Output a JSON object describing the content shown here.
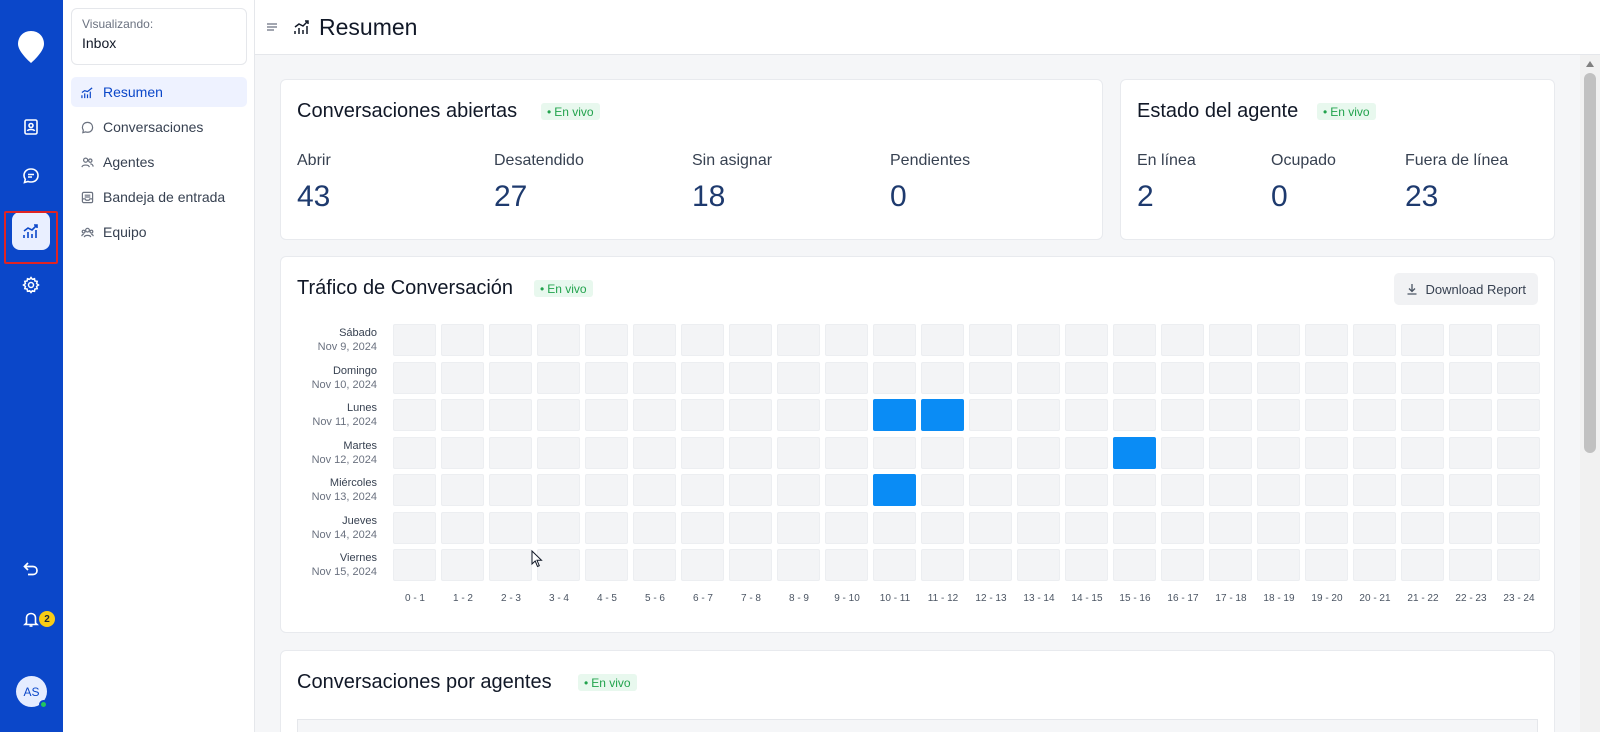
{
  "context": {
    "label": "Visualizando:",
    "value": "Inbox"
  },
  "sidebar": {
    "items": [
      {
        "label": "Resumen",
        "icon": "chart-icon",
        "active": true
      },
      {
        "label": "Conversaciones",
        "icon": "chat-icon"
      },
      {
        "label": "Agentes",
        "icon": "users-icon"
      },
      {
        "label": "Bandeja de entrada",
        "icon": "inbox-icon"
      },
      {
        "label": "Equipo",
        "icon": "team-icon"
      }
    ]
  },
  "rail": {
    "notification_count": "2",
    "avatar_initials": "AS"
  },
  "header": {
    "title": "Resumen"
  },
  "live_label": "En vivo",
  "open_conversations": {
    "title": "Conversaciones abiertas",
    "metrics": [
      {
        "label": "Abrir",
        "value": "43"
      },
      {
        "label": "Desatendido",
        "value": "27"
      },
      {
        "label": "Sin asignar",
        "value": "18"
      },
      {
        "label": "Pendientes",
        "value": "0"
      }
    ]
  },
  "agent_status": {
    "title": "Estado del agente",
    "metrics": [
      {
        "label": "En línea",
        "value": "2"
      },
      {
        "label": "Ocupado",
        "value": "0"
      },
      {
        "label": "Fuera de línea",
        "value": "23"
      }
    ]
  },
  "traffic": {
    "title": "Tráfico de Conversación",
    "download_label": "Download Report"
  },
  "chart_data": {
    "type": "heatmap",
    "title": "Tráfico de Conversación",
    "rows": [
      {
        "day": "Sábado",
        "date": "Nov 9, 2024"
      },
      {
        "day": "Domingo",
        "date": "Nov 10, 2024"
      },
      {
        "day": "Lunes",
        "date": "Nov 11, 2024"
      },
      {
        "day": "Martes",
        "date": "Nov 12, 2024"
      },
      {
        "day": "Miércoles",
        "date": "Nov 13, 2024"
      },
      {
        "day": "Jueves",
        "date": "Nov 14, 2024"
      },
      {
        "day": "Viernes",
        "date": "Nov 15, 2024"
      }
    ],
    "columns": [
      "0 - 1",
      "1 - 2",
      "2 - 3",
      "3 - 4",
      "4 - 5",
      "5 - 6",
      "6 - 7",
      "7 - 8",
      "8 - 9",
      "9 - 10",
      "10 - 11",
      "11 - 12",
      "12 - 13",
      "13 - 14",
      "14 - 15",
      "15 - 16",
      "16 - 17",
      "17 - 18",
      "18 - 19",
      "19 - 20",
      "20 - 21",
      "21 - 22",
      "22 - 23",
      "23 - 24"
    ],
    "active_cells": [
      {
        "row": "Lunes",
        "col": "10 - 11"
      },
      {
        "row": "Lunes",
        "col": "11 - 12"
      },
      {
        "row": "Martes",
        "col": "15 - 16"
      },
      {
        "row": "Miércoles",
        "col": "10 - 11"
      }
    ]
  },
  "by_agents": {
    "title": "Conversaciones por agentes"
  }
}
